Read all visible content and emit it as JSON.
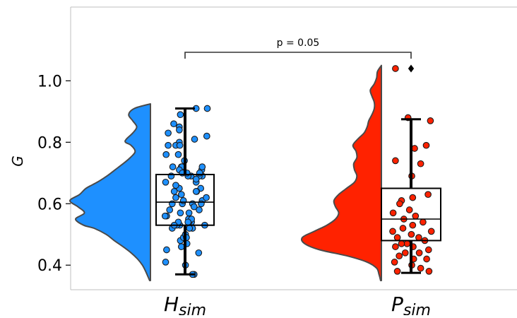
{
  "chart_data": {
    "type": "raincloud",
    "ylabel": "G",
    "ylim": [
      0.32,
      1.24
    ],
    "yticks": [
      0.4,
      0.6,
      0.8,
      1.0
    ],
    "ytick_labels": [
      "0.4",
      "0.6",
      "0.8",
      "1.0"
    ],
    "annotation": {
      "text": "p = 0.05",
      "between": [
        "H_sim",
        "P_sim"
      ]
    },
    "groups": [
      {
        "key": "H_sim",
        "label_main": "H",
        "label_sub": "sim",
        "color": "#1e90ff",
        "box": {
          "whisker_low": 0.37,
          "q1": 0.53,
          "median": 0.605,
          "q3": 0.695,
          "whisker_high": 0.91
        },
        "outliers": [],
        "kde": [
          [
            0.35,
            0.01
          ],
          [
            0.38,
            0.06
          ],
          [
            0.4,
            0.1
          ],
          [
            0.42,
            0.16
          ],
          [
            0.44,
            0.24
          ],
          [
            0.46,
            0.34
          ],
          [
            0.48,
            0.45
          ],
          [
            0.5,
            0.55
          ],
          [
            0.52,
            0.7
          ],
          [
            0.53,
            0.83
          ],
          [
            0.55,
            0.93
          ],
          [
            0.57,
            0.82
          ],
          [
            0.59,
            0.9
          ],
          [
            0.61,
            1.0
          ],
          [
            0.63,
            0.88
          ],
          [
            0.65,
            0.8
          ],
          [
            0.67,
            0.66
          ],
          [
            0.69,
            0.54
          ],
          [
            0.71,
            0.44
          ],
          [
            0.73,
            0.34
          ],
          [
            0.75,
            0.25
          ],
          [
            0.77,
            0.19
          ],
          [
            0.79,
            0.24
          ],
          [
            0.8,
            0.31
          ],
          [
            0.81,
            0.3
          ],
          [
            0.83,
            0.22
          ],
          [
            0.85,
            0.17
          ],
          [
            0.87,
            0.22
          ],
          [
            0.89,
            0.27
          ],
          [
            0.91,
            0.2
          ],
          [
            0.925,
            0.0
          ]
        ],
        "points": [
          [
            0.8,
            0.36
          ],
          [
            0.82,
            0.9
          ],
          [
            0.91,
            0.91
          ],
          [
            0.65,
            0.78
          ],
          [
            0.65,
            0.36
          ],
          [
            0.52,
            0.22
          ],
          [
            0.85,
            0.36
          ],
          [
            0.89,
            0.38
          ],
          [
            0.79,
            0.14
          ],
          [
            0.69,
            0.81
          ],
          [
            0.56,
            0.11
          ],
          [
            0.44,
            0.74
          ],
          [
            0.64,
            0.26
          ],
          [
            0.55,
            0.54
          ],
          [
            0.53,
            0.37
          ],
          [
            0.46,
            0.4
          ],
          [
            0.56,
            0.08
          ],
          [
            0.6,
            0.22
          ],
          [
            0.67,
            0.69
          ],
          [
            0.86,
            0.25
          ],
          [
            0.53,
            0.86
          ],
          [
            0.72,
            0.23
          ],
          [
            0.41,
            0.09
          ],
          [
            0.47,
            0.51
          ],
          [
            0.71,
            0.8
          ],
          [
            0.64,
            0.7
          ],
          [
            0.48,
            0.38
          ],
          [
            0.49,
            0.44
          ],
          [
            0.53,
            0.31
          ],
          [
            0.52,
            0.62
          ],
          [
            0.67,
            0.09
          ],
          [
            0.84,
            0.36
          ],
          [
            0.83,
            0.14
          ],
          [
            0.62,
            0.29
          ],
          [
            0.54,
            0.6
          ],
          [
            0.54,
            0.55
          ],
          [
            0.5,
            0.48
          ],
          [
            0.69,
            0.2
          ],
          [
            0.91,
            0.69
          ],
          [
            0.57,
            0.38
          ],
          [
            0.58,
            0.17
          ],
          [
            0.45,
            0.11
          ],
          [
            0.55,
            0.6
          ],
          [
            0.69,
            0.75
          ],
          [
            0.57,
            0.55
          ],
          [
            0.61,
            0.81
          ],
          [
            0.81,
            0.66
          ],
          [
            0.37,
            0.65
          ],
          [
            0.6,
            0.42
          ],
          [
            0.62,
            0.89
          ],
          [
            0.69,
            0.59
          ],
          [
            0.79,
            0.29
          ],
          [
            0.4,
            0.48
          ],
          [
            0.64,
            0.69
          ],
          [
            0.69,
            0.53
          ],
          [
            0.6,
            0.62
          ],
          [
            0.7,
            0.76
          ],
          [
            0.79,
            0.37
          ],
          [
            0.68,
            0.69
          ],
          [
            0.66,
            0.29
          ],
          [
            0.61,
            0.44
          ],
          [
            0.7,
            0.51
          ],
          [
            0.6,
            0.79
          ],
          [
            0.63,
            0.4
          ],
          [
            0.72,
            0.81
          ],
          [
            0.49,
            0.5
          ],
          [
            0.76,
            0.34
          ],
          [
            0.72,
            0.4
          ],
          [
            0.72,
            0.41
          ],
          [
            0.54,
            0.34
          ],
          [
            0.52,
            0.56
          ],
          [
            0.76,
            0.1
          ],
          [
            0.71,
            0.36
          ],
          [
            0.37,
            0.62
          ],
          [
            0.7,
            0.42
          ],
          [
            0.59,
            0.65
          ],
          [
            0.54,
            0.53
          ],
          [
            0.58,
            0.75
          ],
          [
            0.53,
            0.26
          ],
          [
            0.74,
            0.46
          ]
        ]
      },
      {
        "key": "P_sim",
        "label_main": "P",
        "label_sub": "sim",
        "color": "#ff2200",
        "box": {
          "whisker_low": 0.375,
          "q1": 0.48,
          "median": 0.55,
          "q3": 0.65,
          "whisker_high": 0.875
        },
        "outliers": [
          1.04
        ],
        "kde": [
          [
            0.35,
            0.01
          ],
          [
            0.37,
            0.03
          ],
          [
            0.39,
            0.06
          ],
          [
            0.41,
            0.18
          ],
          [
            0.43,
            0.43
          ],
          [
            0.45,
            0.78
          ],
          [
            0.47,
            0.97
          ],
          [
            0.49,
            1.0
          ],
          [
            0.51,
            0.85
          ],
          [
            0.53,
            0.69
          ],
          [
            0.55,
            0.58
          ],
          [
            0.57,
            0.54
          ],
          [
            0.59,
            0.58
          ],
          [
            0.61,
            0.6
          ],
          [
            0.63,
            0.54
          ],
          [
            0.65,
            0.44
          ],
          [
            0.67,
            0.34
          ],
          [
            0.69,
            0.31
          ],
          [
            0.71,
            0.34
          ],
          [
            0.73,
            0.35
          ],
          [
            0.75,
            0.31
          ],
          [
            0.77,
            0.32
          ],
          [
            0.79,
            0.36
          ],
          [
            0.81,
            0.3
          ],
          [
            0.83,
            0.22
          ],
          [
            0.85,
            0.18
          ],
          [
            0.87,
            0.16
          ],
          [
            0.89,
            0.12
          ],
          [
            0.91,
            0.09
          ],
          [
            0.93,
            0.09
          ],
          [
            0.95,
            0.12
          ],
          [
            0.97,
            0.14
          ],
          [
            0.99,
            0.09
          ],
          [
            1.01,
            0.06
          ],
          [
            1.03,
            0.05
          ],
          [
            1.05,
            0.0
          ]
        ],
        "points": [
          [
            1.04,
            0.12
          ],
          [
            0.88,
            0.39
          ],
          [
            0.87,
            0.87
          ],
          [
            0.78,
            0.53
          ],
          [
            0.79,
            0.78
          ],
          [
            0.73,
            0.66
          ],
          [
            0.74,
            0.12
          ],
          [
            0.69,
            0.47
          ],
          [
            0.63,
            0.82
          ],
          [
            0.62,
            0.49
          ],
          [
            0.61,
            0.25
          ],
          [
            0.6,
            0.21
          ],
          [
            0.58,
            0.42
          ],
          [
            0.57,
            0.07
          ],
          [
            0.56,
            0.55
          ],
          [
            0.55,
            0.3
          ],
          [
            0.54,
            0.71
          ],
          [
            0.53,
            0.49
          ],
          [
            0.52,
            0.28
          ],
          [
            0.51,
            0.89
          ],
          [
            0.51,
            0.06
          ],
          [
            0.5,
            0.46
          ],
          [
            0.49,
            0.62
          ],
          [
            0.49,
            0.16
          ],
          [
            0.48,
            0.75
          ],
          [
            0.47,
            0.37
          ],
          [
            0.46,
            0.5
          ],
          [
            0.46,
            0.12
          ],
          [
            0.45,
            0.83
          ],
          [
            0.44,
            0.33
          ],
          [
            0.44,
            0.63
          ],
          [
            0.43,
            0.2
          ],
          [
            0.42,
            0.51
          ],
          [
            0.42,
            0.79
          ],
          [
            0.41,
            0.1
          ],
          [
            0.4,
            0.47
          ],
          [
            0.39,
            0.66
          ],
          [
            0.38,
            0.16
          ],
          [
            0.38,
            0.84
          ],
          [
            0.47,
            0.25
          ]
        ]
      }
    ]
  }
}
